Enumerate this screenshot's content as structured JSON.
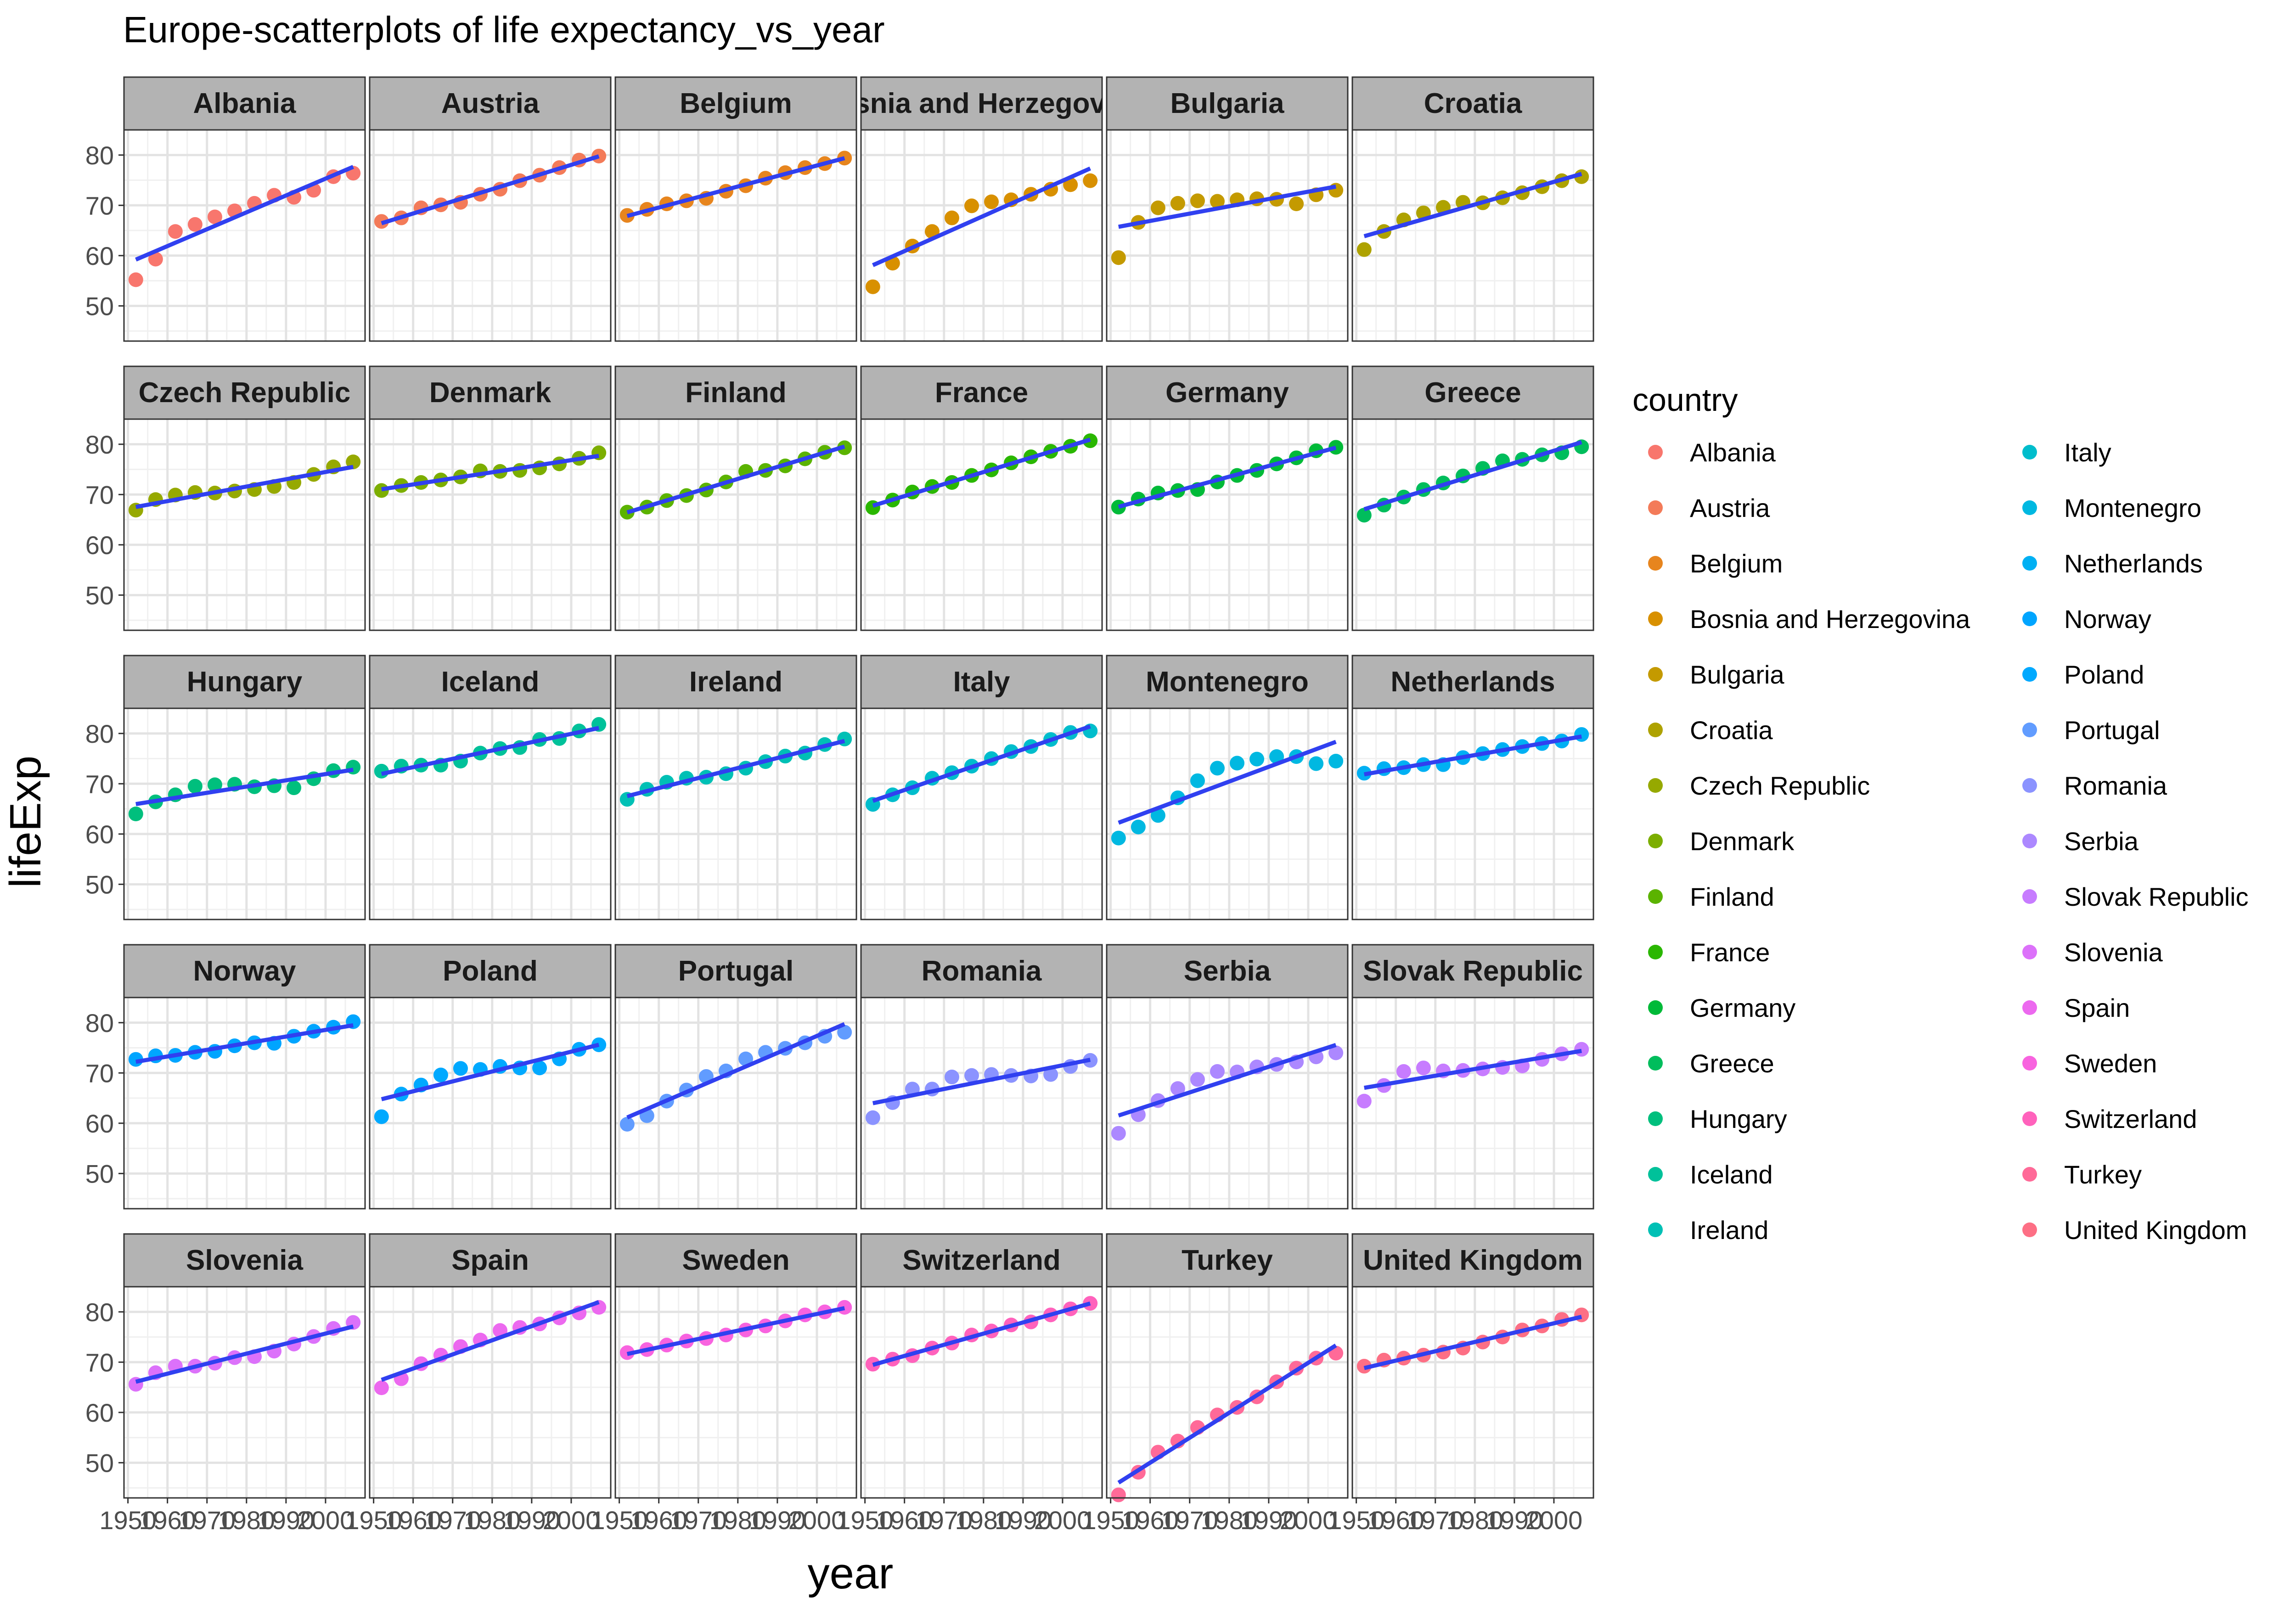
{
  "chart_data": {
    "type": "scatter",
    "title": "Europe-scatterplots of life expectancy_vs_year",
    "xlabel": "year",
    "ylabel": "lifeExp",
    "xlim": [
      1949,
      2010
    ],
    "ylim": [
      43,
      85
    ],
    "x_ticks": [
      1950,
      1960,
      1970,
      1980,
      1990,
      2000
    ],
    "x_tick_labels": [
      "1950",
      "1960",
      "1970",
      "1980",
      "1990",
      "2000"
    ],
    "y_ticks": [
      50,
      60,
      70,
      80
    ],
    "y_tick_labels": [
      "50",
      "60",
      "70",
      "80"
    ],
    "grid": true,
    "legend": {
      "title": "country",
      "placement": "right"
    },
    "years": [
      1952,
      1957,
      1962,
      1967,
      1972,
      1977,
      1982,
      1987,
      1992,
      1997,
      2002,
      2007
    ],
    "facet_labels": [
      "Albania",
      "Austria",
      "Belgium",
      "Bosnia and Herzegovina",
      "Bulgaria",
      "Croatia",
      "Czech Republic",
      "Denmark",
      "Finland",
      "France",
      "Germany",
      "Greece",
      "Hungary",
      "Iceland",
      "Ireland",
      "Italy",
      "Montenegro",
      "Netherlands",
      "Norway",
      "Poland",
      "Portugal",
      "Romania",
      "Serbia",
      "Slovak Republic",
      "Slovenia",
      "Spain",
      "Sweden",
      "Switzerland",
      "Turkey",
      "United Kingdom"
    ],
    "fit_color": "#3040F0",
    "series": [
      {
        "name": "Albania",
        "color": "#F8766D",
        "values": [
          55.2,
          59.3,
          64.8,
          66.2,
          67.7,
          68.9,
          70.4,
          72.0,
          71.6,
          73.0,
          75.7,
          76.4
        ]
      },
      {
        "name": "Austria",
        "color": "#F37B59",
        "values": [
          66.8,
          67.5,
          69.5,
          70.1,
          70.6,
          72.2,
          73.2,
          74.9,
          76.0,
          77.5,
          79.0,
          79.8
        ]
      },
      {
        "name": "Belgium",
        "color": "#E7851E",
        "values": [
          68.0,
          69.2,
          70.3,
          70.9,
          71.4,
          72.8,
          73.9,
          75.4,
          76.5,
          77.5,
          78.3,
          79.4
        ]
      },
      {
        "name": "Bosnia and Herzegovina",
        "color": "#D89000",
        "values": [
          53.8,
          58.5,
          61.9,
          64.8,
          67.5,
          69.9,
          70.7,
          71.1,
          72.2,
          73.2,
          74.1,
          74.9
        ]
      },
      {
        "name": "Bulgaria",
        "color": "#C49A00",
        "values": [
          59.6,
          66.6,
          69.5,
          70.4,
          70.9,
          70.8,
          71.1,
          71.3,
          71.2,
          70.3,
          72.1,
          73.0
        ]
      },
      {
        "name": "Croatia",
        "color": "#AEA200",
        "values": [
          61.2,
          64.8,
          67.1,
          68.5,
          69.6,
          70.6,
          70.5,
          71.5,
          72.5,
          73.7,
          74.9,
          75.7
        ]
      },
      {
        "name": "Czech Republic",
        "color": "#96A900",
        "values": [
          66.9,
          69.0,
          69.9,
          70.4,
          70.3,
          70.7,
          71.0,
          71.6,
          72.4,
          74.0,
          75.5,
          76.5
        ]
      },
      {
        "name": "Denmark",
        "color": "#7CAE00",
        "values": [
          70.8,
          71.8,
          72.4,
          72.9,
          73.5,
          74.7,
          74.6,
          74.8,
          75.3,
          76.1,
          77.2,
          78.3
        ]
      },
      {
        "name": "Finland",
        "color": "#5BB300",
        "values": [
          66.5,
          67.5,
          68.8,
          69.8,
          70.9,
          72.5,
          74.6,
          74.8,
          75.7,
          77.1,
          78.4,
          79.3
        ]
      },
      {
        "name": "France",
        "color": "#2AB700",
        "values": [
          67.4,
          68.9,
          70.5,
          71.6,
          72.4,
          73.8,
          74.9,
          76.3,
          77.5,
          78.6,
          79.6,
          80.7
        ]
      },
      {
        "name": "Germany",
        "color": "#00BA38",
        "values": [
          67.5,
          69.1,
          70.3,
          70.8,
          71.0,
          72.5,
          73.8,
          74.8,
          76.1,
          77.3,
          78.7,
          79.4
        ]
      },
      {
        "name": "Greece",
        "color": "#00BD5C",
        "values": [
          65.9,
          67.9,
          69.5,
          71.0,
          72.3,
          73.7,
          75.2,
          76.7,
          77.0,
          77.9,
          78.3,
          79.5
        ]
      },
      {
        "name": "Hungary",
        "color": "#00BF7D",
        "values": [
          64.0,
          66.4,
          67.8,
          69.5,
          69.8,
          69.9,
          69.4,
          69.6,
          69.2,
          71.0,
          72.6,
          73.3
        ]
      },
      {
        "name": "Iceland",
        "color": "#00C19A",
        "values": [
          72.5,
          73.5,
          73.7,
          73.7,
          74.5,
          76.1,
          77.0,
          77.2,
          78.8,
          79.0,
          80.5,
          81.8
        ]
      },
      {
        "name": "Ireland",
        "color": "#00C0B5",
        "values": [
          66.9,
          68.9,
          70.3,
          71.1,
          71.3,
          72.0,
          73.1,
          74.4,
          75.5,
          76.1,
          77.8,
          78.9
        ]
      },
      {
        "name": "Italy",
        "color": "#00BDCC",
        "values": [
          65.9,
          67.8,
          69.2,
          71.1,
          72.2,
          73.5,
          75.0,
          76.4,
          77.4,
          78.8,
          80.2,
          80.5
        ]
      },
      {
        "name": "Montenegro",
        "color": "#00B8E1",
        "values": [
          59.2,
          61.4,
          63.7,
          67.2,
          70.6,
          73.1,
          74.1,
          74.9,
          75.4,
          75.4,
          74.0,
          74.5
        ]
      },
      {
        "name": "Netherlands",
        "color": "#00B0F3",
        "values": [
          72.1,
          73.0,
          73.2,
          73.8,
          73.8,
          75.2,
          76.0,
          76.8,
          77.4,
          78.0,
          78.5,
          79.8
        ]
      },
      {
        "name": "Norway",
        "color": "#00A5FF",
        "values": [
          72.7,
          73.4,
          73.5,
          74.1,
          74.3,
          75.4,
          76.0,
          75.9,
          77.3,
          78.3,
          79.1,
          80.2
        ]
      },
      {
        "name": "Poland",
        "color": "#00A9FF",
        "values": [
          61.3,
          65.8,
          67.6,
          69.6,
          70.9,
          70.7,
          71.3,
          71.0,
          71.0,
          72.8,
          74.7,
          75.6
        ]
      },
      {
        "name": "Portugal",
        "color": "#619CFF",
        "values": [
          59.8,
          61.5,
          64.4,
          66.6,
          69.3,
          70.4,
          72.8,
          74.1,
          74.9,
          76.0,
          77.3,
          78.1
        ]
      },
      {
        "name": "Romania",
        "color": "#8B93FF",
        "values": [
          61.1,
          64.1,
          66.8,
          66.8,
          69.2,
          69.5,
          69.7,
          69.5,
          69.4,
          69.7,
          71.3,
          72.5
        ]
      },
      {
        "name": "Serbia",
        "color": "#AC88FF",
        "values": [
          58.0,
          61.7,
          64.5,
          66.9,
          68.7,
          70.3,
          70.2,
          71.2,
          71.7,
          72.2,
          73.2,
          74.0
        ]
      },
      {
        "name": "Slovak Republic",
        "color": "#C77CFF",
        "values": [
          64.4,
          67.5,
          70.3,
          71.0,
          70.4,
          70.5,
          70.8,
          71.1,
          71.4,
          72.7,
          73.8,
          74.7
        ]
      },
      {
        "name": "Slovenia",
        "color": "#DC71FA",
        "values": [
          65.6,
          67.9,
          69.2,
          69.2,
          69.8,
          70.9,
          71.1,
          72.2,
          73.6,
          75.1,
          76.7,
          77.9
        ]
      },
      {
        "name": "Spain",
        "color": "#EC69EF",
        "values": [
          64.9,
          66.7,
          69.7,
          71.4,
          73.1,
          74.4,
          76.3,
          76.9,
          77.6,
          78.8,
          79.8,
          80.9
        ]
      },
      {
        "name": "Sweden",
        "color": "#F863DF",
        "values": [
          71.9,
          72.5,
          73.4,
          74.2,
          74.7,
          75.4,
          76.4,
          77.2,
          78.2,
          79.4,
          80.0,
          80.9
        ]
      },
      {
        "name": "Switzerland",
        "color": "#FF62BC",
        "values": [
          69.6,
          70.6,
          71.3,
          72.8,
          73.8,
          75.4,
          76.2,
          77.4,
          78.0,
          79.4,
          80.6,
          81.7
        ]
      },
      {
        "name": "Turkey",
        "color": "#FF6A98",
        "values": [
          43.6,
          48.1,
          52.1,
          54.3,
          57.0,
          59.5,
          61.0,
          63.1,
          66.1,
          68.8,
          70.8,
          71.8
        ]
      },
      {
        "name": "United Kingdom",
        "color": "#FD6F85",
        "values": [
          69.2,
          70.4,
          70.8,
          71.4,
          72.0,
          72.8,
          74.0,
          75.0,
          76.4,
          77.2,
          78.5,
          79.4
        ]
      }
    ]
  }
}
